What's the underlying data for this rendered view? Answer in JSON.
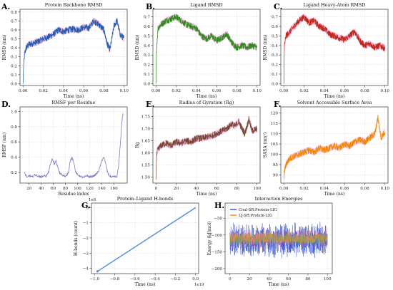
{
  "chart_data": [
    {
      "type": "line",
      "panel_label": "A.",
      "title": "Protein Backbone RMSD",
      "xlabel": "Time (ns)",
      "ylabel": "RMSD (nm)",
      "xlim": [
        -0.003,
        0.103
      ],
      "ylim": [
        -0.02,
        0.83
      ],
      "xticks": [
        0.0,
        0.02,
        0.04,
        0.06,
        0.08,
        0.1
      ],
      "xtick_labels": [
        "0.00",
        "0.02",
        "0.04",
        "0.06",
        "0.08",
        "0.10"
      ],
      "yticks": [
        0.0,
        0.1,
        0.2,
        0.3,
        0.4,
        0.5,
        0.6,
        0.7,
        0.8
      ],
      "ytick_labels": [
        "0.0",
        "0.1",
        "0.2",
        "0.3",
        "0.4",
        "0.5",
        "0.6",
        "0.7",
        "0.8"
      ],
      "grid": true,
      "series": [
        {
          "color": "#1f5fb4",
          "band_color": "#ff6ad5",
          "x": [
            0.0,
            0.0005,
            0.0015,
            0.003,
            0.006,
            0.01,
            0.015,
            0.02,
            0.025,
            0.03,
            0.035,
            0.04,
            0.045,
            0.05,
            0.055,
            0.06,
            0.065,
            0.07,
            0.075,
            0.08,
            0.083,
            0.086,
            0.09,
            0.093,
            0.096,
            0.1
          ],
          "y": [
            0.0,
            0.18,
            0.33,
            0.4,
            0.44,
            0.45,
            0.47,
            0.5,
            0.52,
            0.55,
            0.6,
            0.58,
            0.6,
            0.61,
            0.6,
            0.63,
            0.62,
            0.7,
            0.66,
            0.6,
            0.45,
            0.38,
            0.65,
            0.7,
            0.55,
            0.5
          ]
        }
      ]
    },
    {
      "type": "line",
      "panel_label": "B.",
      "title": "Ligand RMSD",
      "xlabel": "Time (ns)",
      "ylabel": "RMSD (nm)",
      "xlim": [
        -0.003,
        0.103
      ],
      "ylim": [
        -0.02,
        0.78
      ],
      "xticks": [
        0.0,
        0.02,
        0.04,
        0.06,
        0.08,
        0.1
      ],
      "xtick_labels": [
        "0.00",
        "0.02",
        "0.04",
        "0.06",
        "0.08",
        "0.10"
      ],
      "yticks": [
        0.0,
        0.1,
        0.2,
        0.3,
        0.4,
        0.5,
        0.6,
        0.7
      ],
      "ytick_labels": [
        "0.0",
        "0.1",
        "0.2",
        "0.3",
        "0.4",
        "0.5",
        "0.6",
        "0.7"
      ],
      "grid": true,
      "series": [
        {
          "color": "#2e8b1e",
          "band_color": "#ff6ad5",
          "x": [
            0.0,
            0.0005,
            0.002,
            0.005,
            0.01,
            0.015,
            0.02,
            0.025,
            0.03,
            0.035,
            0.04,
            0.045,
            0.05,
            0.055,
            0.06,
            0.065,
            0.07,
            0.075,
            0.08,
            0.085,
            0.09,
            0.095,
            0.1
          ],
          "y": [
            0.0,
            0.35,
            0.58,
            0.62,
            0.66,
            0.68,
            0.7,
            0.66,
            0.62,
            0.6,
            0.58,
            0.5,
            0.47,
            0.5,
            0.45,
            0.48,
            0.52,
            0.43,
            0.38,
            0.4,
            0.38,
            0.4,
            0.38
          ]
        }
      ]
    },
    {
      "type": "line",
      "panel_label": "C.",
      "title": "Ligand Heavy-Atom RMSD",
      "xlabel": "Time (ns)",
      "ylabel": "RMSD (nm)",
      "xlim": [
        -0.003,
        0.103
      ],
      "ylim": [
        -0.02,
        0.78
      ],
      "xticks": [
        0.0,
        0.02,
        0.04,
        0.06,
        0.08,
        0.1
      ],
      "xtick_labels": [
        "0.00",
        "0.02",
        "0.04",
        "0.06",
        "0.08",
        "0.10"
      ],
      "yticks": [
        0.0,
        0.1,
        0.2,
        0.3,
        0.4,
        0.5,
        0.6,
        0.7
      ],
      "ytick_labels": [
        "0.0",
        "0.1",
        "0.2",
        "0.3",
        "0.4",
        "0.5",
        "0.6",
        "0.7"
      ],
      "grid": true,
      "series": [
        {
          "color": "#c0281c",
          "band_color": "#ff6ad5",
          "x": [
            0.0,
            0.0005,
            0.002,
            0.005,
            0.01,
            0.015,
            0.02,
            0.025,
            0.03,
            0.035,
            0.04,
            0.045,
            0.05,
            0.055,
            0.06,
            0.065,
            0.07,
            0.075,
            0.08,
            0.085,
            0.09,
            0.095,
            0.1
          ],
          "y": [
            0.0,
            0.38,
            0.5,
            0.53,
            0.6,
            0.66,
            0.7,
            0.64,
            0.66,
            0.6,
            0.58,
            0.52,
            0.5,
            0.48,
            0.46,
            0.5,
            0.55,
            0.45,
            0.4,
            0.42,
            0.38,
            0.4,
            0.37
          ]
        }
      ]
    },
    {
      "type": "line",
      "panel_label": "D.",
      "title": "RMSF per Residue",
      "xlabel": "Residue index",
      "ylabel": "RMSF (nm)",
      "xlim": [
        5,
        182
      ],
      "ylim": [
        0.06,
        1.06
      ],
      "xticks": [
        20,
        40,
        60,
        80,
        100,
        120,
        140,
        160
      ],
      "xtick_labels": [
        "20",
        "40",
        "60",
        "80",
        "100",
        "120",
        "140",
        "160"
      ],
      "yticks": [
        0.2,
        0.4,
        0.6,
        0.8,
        1.0
      ],
      "ytick_labels": [
        "0.2",
        "0.4",
        "0.6",
        "0.8",
        "1.0"
      ],
      "grid": true,
      "series": [
        {
          "color": "#8a6fc9",
          "x": [
            12,
            14,
            17,
            20,
            25,
            30,
            35,
            40,
            45,
            48,
            52,
            56,
            58,
            60,
            62,
            64,
            66,
            70,
            75,
            80,
            85,
            88,
            91,
            94,
            97,
            100,
            105,
            110,
            115,
            120,
            125,
            130,
            135,
            140,
            143,
            146,
            149,
            152,
            156,
            160,
            165,
            168,
            171,
            173,
            175
          ],
          "y": [
            0.2,
            0.17,
            0.13,
            0.16,
            0.14,
            0.17,
            0.15,
            0.14,
            0.16,
            0.15,
            0.2,
            0.33,
            0.37,
            0.35,
            0.3,
            0.36,
            0.3,
            0.2,
            0.16,
            0.15,
            0.2,
            0.35,
            0.4,
            0.33,
            0.2,
            0.17,
            0.15,
            0.13,
            0.16,
            0.14,
            0.15,
            0.17,
            0.22,
            0.35,
            0.4,
            0.33,
            0.22,
            0.16,
            0.14,
            0.15,
            0.14,
            0.3,
            0.6,
            0.85,
            0.98
          ]
        }
      ]
    },
    {
      "type": "line",
      "panel_label": "E.",
      "title": "Radius of Gyration (Rg)",
      "xlabel": "Time (ns)",
      "ylabel": "Rg",
      "xlim": [
        -3,
        103
      ],
      "ylim": [
        1.475,
        1.79
      ],
      "xticks": [
        0,
        20,
        40,
        60,
        80,
        100
      ],
      "xtick_labels": [
        "0",
        "20",
        "40",
        "60",
        "80",
        "100"
      ],
      "yticks": [
        1.5,
        1.55,
        1.6,
        1.65,
        1.7,
        1.75
      ],
      "ytick_labels": [
        "1.50",
        "1.55",
        "1.60",
        "1.65",
        "1.70",
        "1.75"
      ],
      "grid": true,
      "series": [
        {
          "color": "#7a4a38",
          "band_color": "#ff6ad5",
          "x": [
            0,
            0.5,
            1.5,
            3,
            5,
            10,
            15,
            20,
            25,
            30,
            35,
            40,
            45,
            50,
            55,
            60,
            65,
            70,
            75,
            78,
            82,
            85,
            88,
            92,
            95,
            100
          ],
          "y": [
            1.49,
            1.58,
            1.61,
            1.62,
            1.63,
            1.64,
            1.63,
            1.645,
            1.64,
            1.65,
            1.645,
            1.66,
            1.66,
            1.665,
            1.67,
            1.68,
            1.69,
            1.7,
            1.72,
            1.71,
            1.73,
            1.7,
            1.68,
            1.74,
            1.69,
            1.7
          ]
        }
      ]
    },
    {
      "type": "line",
      "panel_label": "F.",
      "title": "Solvent Accessible Surface Area",
      "xlabel": "Time (ns)",
      "ylabel": "SASA (nm²)",
      "xlim": [
        -0.003,
        0.103
      ],
      "ylim": [
        86,
        123
      ],
      "xticks": [
        0.0,
        0.02,
        0.04,
        0.06,
        0.08,
        0.1
      ],
      "xtick_labels": [
        "0.00",
        "0.02",
        "0.04",
        "0.06",
        "0.08",
        "0.10"
      ],
      "yticks": [
        90,
        95,
        100,
        105,
        110,
        115,
        120
      ],
      "ytick_labels": [
        "90",
        "95",
        "100",
        "105",
        "110",
        "115",
        "120"
      ],
      "grid": true,
      "series": [
        {
          "color": "#ee8a0a",
          "band_color": "#ff6ad5",
          "x": [
            0.0,
            0.001,
            0.003,
            0.006,
            0.01,
            0.015,
            0.02,
            0.025,
            0.03,
            0.035,
            0.04,
            0.045,
            0.05,
            0.055,
            0.06,
            0.065,
            0.07,
            0.075,
            0.08,
            0.085,
            0.09,
            0.093,
            0.096,
            0.1
          ],
          "y": [
            88,
            93,
            96,
            98,
            99,
            100,
            101,
            102,
            101,
            103,
            102,
            103,
            104,
            103,
            105,
            104,
            106,
            107,
            106,
            108,
            110,
            118,
            108,
            111
          ]
        }
      ]
    },
    {
      "type": "line",
      "panel_label": "G.",
      "title": "Protein–Ligand H-bonds",
      "xlabel": "Time (ns)",
      "ylabel": "H-bonds (count)",
      "x_offset_label": "1e19",
      "y_offset_label": "1e8",
      "xlim": [
        -1.03,
        0.03
      ],
      "ylim": [
        -4.35,
        0.3
      ],
      "xticks": [
        -1.0,
        -0.8,
        -0.6,
        -0.4,
        -0.2,
        0.0
      ],
      "xtick_labels": [
        "−1.0",
        "−0.8",
        "−0.6",
        "−0.4",
        "−0.2",
        "0.0"
      ],
      "yticks": [
        -4,
        -3,
        -2,
        -1,
        0
      ],
      "ytick_labels": [
        "−4",
        "−3",
        "−2",
        "−1",
        "0"
      ],
      "grid": true,
      "series": [
        {
          "color": "#4a90d9",
          "x": [
            -0.97,
            0.0
          ],
          "y": [
            -4.2,
            0.0
          ]
        }
      ]
    },
    {
      "type": "line",
      "panel_label": "H.",
      "title": "Interaction Energies",
      "xlabel": "Time (ns)",
      "ylabel": "Energy (kJ/mol)",
      "xlim": [
        -5,
        105
      ],
      "ylim": [
        -215,
        -5
      ],
      "xticks": [
        0,
        20,
        40,
        60,
        80,
        100
      ],
      "xtick_labels": [
        "0",
        "20",
        "40",
        "60",
        "80",
        "100"
      ],
      "yticks": [
        -200,
        -150,
        -100,
        -50
      ],
      "ytick_labels": [
        "−200",
        "−150",
        "−100",
        "−50"
      ],
      "grid": true,
      "legend_position": "top-left",
      "series": [
        {
          "name": "Coul-SR:Protein-LIG",
          "color": "#3a55c8",
          "center": -115,
          "spread": 55
        },
        {
          "name": "LJ-SR:Protein-LIG",
          "color": "#f28e1c",
          "center": -110,
          "spread": 20
        }
      ],
      "x": [
        0,
        100
      ]
    }
  ]
}
